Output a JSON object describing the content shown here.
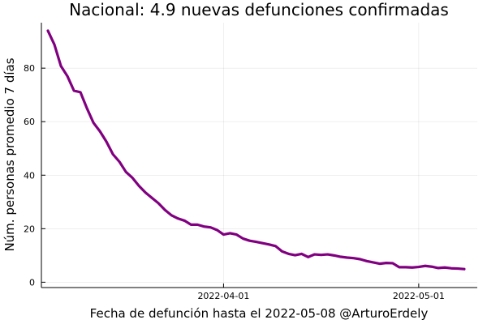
{
  "chart_data": {
    "type": "line",
    "title": "Nacional: 4.9 nuevas defunciones confirmadas",
    "xlabel": "Fecha de defunción hasta el 2022-05-08 @ArturoErdely",
    "ylabel": "Núm. personas promedio 7 días",
    "x_start": "2022-03-05",
    "x_end": "2022-05-08",
    "xlim": [
      "2022-03-04",
      "2022-05-10"
    ],
    "ylim": [
      -2,
      97
    ],
    "x_ticks": [
      "2022-04-01",
      "2022-05-01"
    ],
    "y_ticks": [
      0,
      20,
      40,
      60,
      80
    ],
    "grid": true,
    "legend": "none",
    "line_color": "#800080",
    "series": [
      {
        "values": [
          94.0,
          88.8,
          80.8,
          77.0,
          71.6,
          71.0,
          65.0,
          59.6,
          56.4,
          52.5,
          47.8,
          45.0,
          41.2,
          39.0,
          36.0,
          33.5,
          31.5,
          29.5,
          27.0,
          25.0,
          23.8,
          23.0,
          21.5,
          21.5,
          20.8,
          20.5,
          19.5,
          17.8,
          18.3,
          17.8,
          16.3,
          15.5,
          15.1,
          14.6,
          14.1,
          13.5,
          11.5,
          10.6,
          10.1,
          10.6,
          9.4,
          10.4,
          10.2,
          10.4,
          10.0,
          9.5,
          9.2,
          9.0,
          8.6,
          7.9,
          7.4,
          6.9,
          7.2,
          7.1,
          5.6,
          5.6,
          5.5,
          5.7,
          6.1,
          5.8,
          5.3,
          5.5,
          5.2,
          5.1,
          4.9
        ]
      }
    ]
  }
}
